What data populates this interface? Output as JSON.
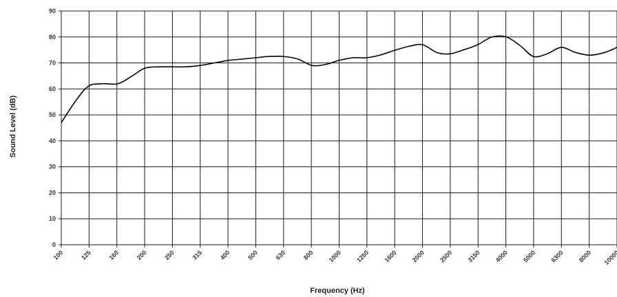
{
  "chart_data": {
    "type": "line",
    "title": "",
    "xlabel": "Frequency (Hz)",
    "ylabel": "Sound Level (dB)",
    "x_scale": "log",
    "ylim": [
      0,
      90
    ],
    "yticks": [
      0,
      10,
      20,
      30,
      40,
      50,
      60,
      70,
      80,
      90
    ],
    "grid": true,
    "legend": "none",
    "categories": [
      "100",
      "125",
      "160",
      "200",
      "250",
      "315",
      "400",
      "500",
      "630",
      "800",
      "1000",
      "1250",
      "1600",
      "2000",
      "2500",
      "3150",
      "4000",
      "5000",
      "6300",
      "8000",
      "10000"
    ],
    "series": [
      {
        "color": "#000000",
        "x": [
          100,
          112,
          125,
          140,
          160,
          180,
          200,
          225,
          250,
          280,
          315,
          355,
          400,
          450,
          500,
          560,
          630,
          710,
          800,
          900,
          1000,
          1120,
          1250,
          1400,
          1600,
          1800,
          2000,
          2250,
          2500,
          2800,
          3150,
          3550,
          4000,
          4500,
          5000,
          5600,
          6300,
          7100,
          8000,
          9000,
          10000
        ],
        "values": [
          47,
          55,
          61,
          62,
          62,
          65,
          68,
          68.5,
          68.5,
          68.5,
          69,
          70,
          71,
          71.5,
          72,
          72.5,
          72.5,
          71.5,
          69,
          69.5,
          71,
          72,
          72,
          73,
          75,
          76.5,
          77,
          74,
          73.5,
          75,
          77,
          80,
          80,
          76.5,
          72.5,
          73.5,
          76,
          74,
          73,
          74,
          76
        ]
      }
    ]
  }
}
